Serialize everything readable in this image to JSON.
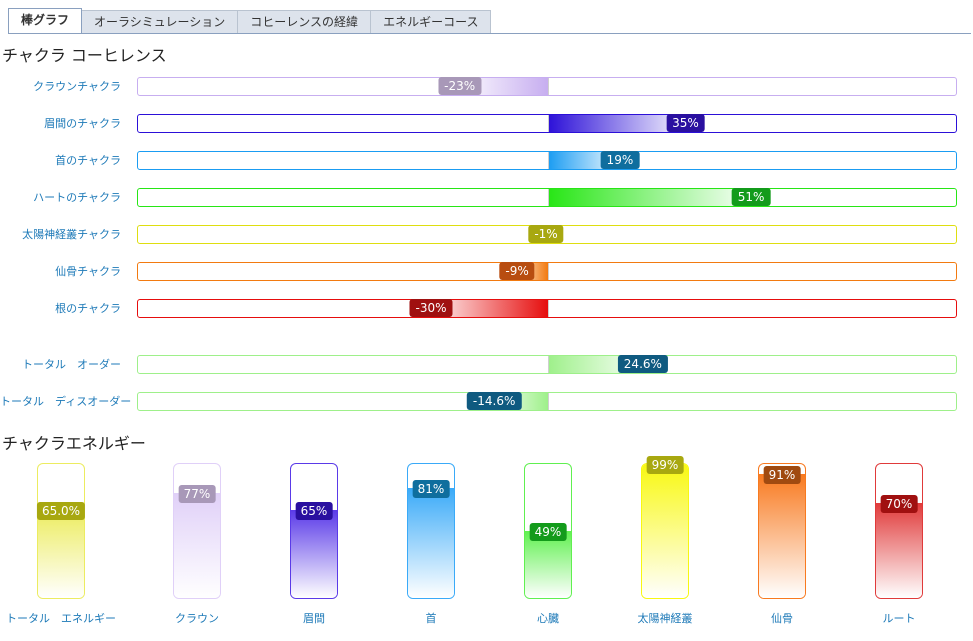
{
  "tabs": [
    {
      "label": "棒グラフ",
      "active": true
    },
    {
      "label": "オーラシミュレーション",
      "active": false
    },
    {
      "label": "コヒーレンスの経緯",
      "active": false
    },
    {
      "label": "エネルギーコース",
      "active": false
    }
  ],
  "coherence_title": "チャクラ  コーヒレンス",
  "energy_title": "チャクラエネルギー",
  "chart_data": [
    {
      "type": "bar",
      "orientation": "horizontal",
      "title": "チャクラ  コーヒレンス",
      "xlim": [
        -100,
        100
      ],
      "categories": [
        "クラウンチャクラ",
        "眉間のチャクラ",
        "首のチャクラ",
        "ハートのチャクラ",
        "太陽神経叢チャクラ",
        "仙骨チャクラ",
        "根のチャクラ",
        "トータル　オーダー",
        "トータル　ディスオーダー"
      ],
      "values": [
        -23,
        35,
        19,
        51,
        -1,
        -9,
        -30,
        24.6,
        -14.6
      ],
      "value_labels": [
        "-23%",
        "35%",
        "19%",
        "51%",
        "-1%",
        "-9%",
        "-30%",
        "24.6%",
        "-14.6%"
      ],
      "colors": [
        "#c7aef0",
        "#2c10d8",
        "#1a9cf2",
        "#27e615",
        "#dede10",
        "#f27a10",
        "#e60d0d",
        "#9ef08a",
        "#9ef08a"
      ],
      "badge_colors": [
        "#a898b8",
        "#2a10a0",
        "#0f6e9e",
        "#139b1b",
        "#a8a810",
        "#b84d10",
        "#a01010",
        "#0f5a80",
        "#0f5a80"
      ]
    },
    {
      "type": "bar",
      "orientation": "vertical",
      "title": "チャクラエネルギー",
      "ylim": [
        0,
        100
      ],
      "categories": [
        "トータル　エネルギー",
        "クラウン",
        "眉間",
        "首",
        "心臓",
        "太陽神経叢",
        "仙骨",
        "ルート"
      ],
      "values": [
        65.0,
        77,
        65,
        81,
        49,
        99,
        91,
        70
      ],
      "value_labels": [
        "65.0%",
        "77%",
        "65%",
        "81%",
        "49%",
        "99%",
        "91%",
        "70%"
      ],
      "colors": [
        "#ecec60",
        "#e0d0f8",
        "#5a3ae8",
        "#3aaaf8",
        "#60f050",
        "#f8f810",
        "#f87a20",
        "#e03a3a"
      ],
      "badge_colors": [
        "#a8a810",
        "#a898b8",
        "#2a10a0",
        "#0f6e9e",
        "#139b1b",
        "#a8a810",
        "#a04a10",
        "#a01010"
      ]
    }
  ]
}
